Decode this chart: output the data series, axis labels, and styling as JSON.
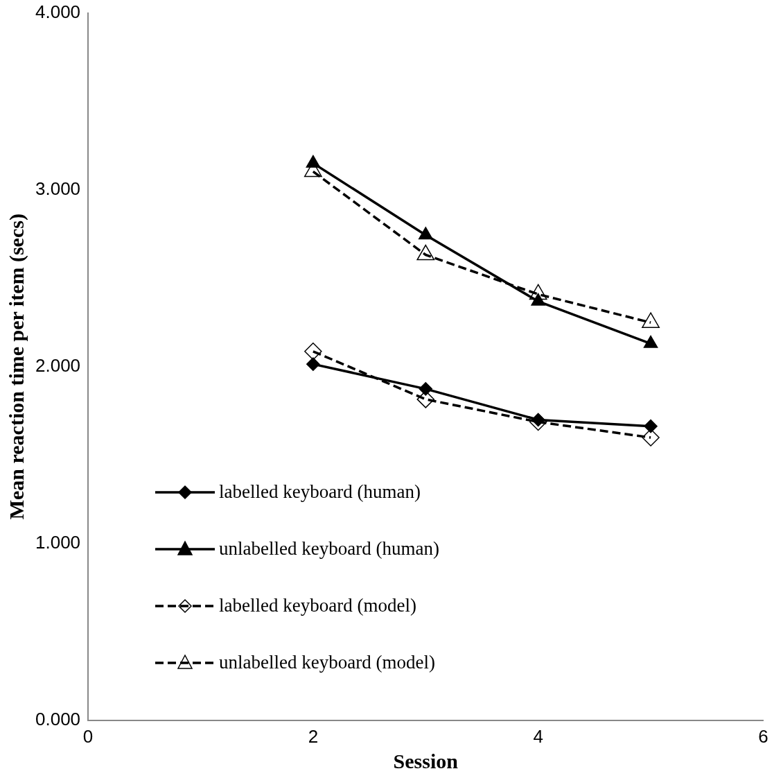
{
  "chart_data": {
    "type": "line",
    "xlabel": "Session",
    "ylabel": "Mean reaction time per item (secs)",
    "x": [
      2,
      3,
      4,
      5
    ],
    "series": [
      {
        "name": "labelled keyboard (human)",
        "color": "#000000",
        "values": [
          2.014,
          1.874,
          1.699,
          1.663
        ],
        "marker": "diamond",
        "line_style": "solid"
      },
      {
        "name": "unlabelled keyboard (human)",
        "color": "#000000",
        "values": [
          3.15,
          2.744,
          2.369,
          2.13
        ],
        "marker": "triangle",
        "line_style": "solid"
      },
      {
        "name": "labelled keyboard (model)",
        "color": "#000000",
        "values": [
          2.086,
          1.815,
          1.687,
          1.599
        ],
        "marker": "diamond",
        "line_style": "dashed"
      },
      {
        "name": "unlabelled keyboard (model)",
        "color": "#000000",
        "values": [
          3.103,
          2.632,
          2.409,
          2.249
        ],
        "marker": "triangle",
        "line_style": "dashed"
      }
    ],
    "xlim": [
      0,
      6
    ],
    "xticks": [
      0,
      2,
      4,
      6
    ],
    "ylim": [
      0,
      4
    ],
    "yticks": [
      {
        "value": 0,
        "label": "0.000"
      },
      {
        "value": 1,
        "label": "1.000"
      },
      {
        "value": 2,
        "label": "2.000"
      },
      {
        "value": 3,
        "label": "3.000"
      },
      {
        "value": 4,
        "label": "4.000"
      }
    ],
    "grid": false,
    "legend": "bottom left"
  }
}
